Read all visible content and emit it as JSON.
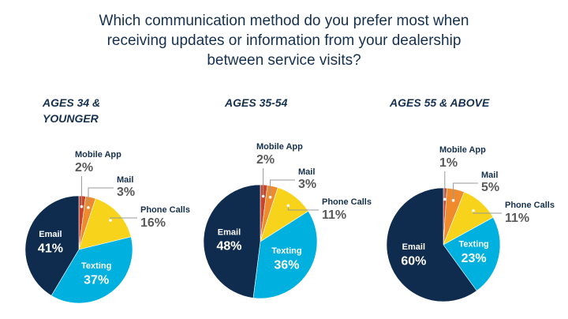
{
  "title": "Which communication method do you prefer most when receiving updates or information from your dealership between service visits?",
  "chart_data": [
    {
      "type": "pie",
      "title": "AGES 34 & YOUNGER",
      "categories": [
        "Mobile App",
        "Mail",
        "Phone Calls",
        "Texting",
        "Email"
      ],
      "values": [
        2,
        3,
        16,
        37,
        41
      ],
      "value_labels": [
        "2%",
        "3%",
        "16%",
        "37%",
        "41%"
      ],
      "colors": [
        "#c9442b",
        "#f08b2d",
        "#f8d31c",
        "#00b1df",
        "#0f2c4e"
      ]
    },
    {
      "type": "pie",
      "title": "AGES 35-54",
      "categories": [
        "Mobile App",
        "Mail",
        "Phone Calls",
        "Texting",
        "Email"
      ],
      "values": [
        2,
        3,
        11,
        36,
        48
      ],
      "value_labels": [
        "2%",
        "3%",
        "11%",
        "36%",
        "48%"
      ],
      "colors": [
        "#c9442b",
        "#f08b2d",
        "#f8d31c",
        "#00b1df",
        "#0f2c4e"
      ]
    },
    {
      "type": "pie",
      "title": "AGES 55 & ABOVE",
      "categories": [
        "Mobile App",
        "Mail",
        "Phone Calls",
        "Texting",
        "Email"
      ],
      "values": [
        1,
        5,
        11,
        23,
        60
      ],
      "value_labels": [
        "1%",
        "5%",
        "11%",
        "23%",
        "60%"
      ],
      "colors": [
        "#c9442b",
        "#f08b2d",
        "#f8d31c",
        "#00b1df",
        "#0f2c4e"
      ]
    }
  ]
}
